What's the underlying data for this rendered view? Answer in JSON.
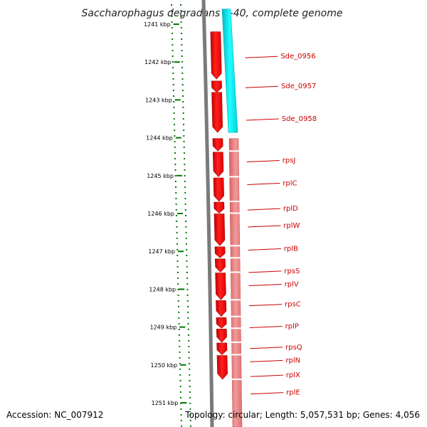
{
  "title": "Saccharophagus degradans 2-40, complete genome",
  "accession": "Accession: NC_007912",
  "topology": "Topology: circular; Length: 5,057,531 bp; Genes: 4,056",
  "ruler": {
    "unit": "kbp",
    "ticks": [
      "1241 kbp",
      "1242 kbp",
      "1243 kbp",
      "1244 kbp",
      "1245 kbp",
      "1246 kbp",
      "1247 kbp",
      "1248 kbp",
      "1249 kbp",
      "1250 kbp",
      "1251 kbp"
    ]
  },
  "colors": {
    "gene_arrow": "#ff0000",
    "operon_light": "#e77c7c",
    "highlight_cyan": "#00f0f0",
    "backbone": "#777777",
    "tick_green": "#006600",
    "label_red": "#cc0000"
  },
  "genes": [
    {
      "name": "Sde_0956",
      "start": 1241.2,
      "end": 1242.45
    },
    {
      "name": "Sde_0957",
      "start": 1242.5,
      "end": 1242.8
    },
    {
      "name": "Sde_0958",
      "start": 1242.8,
      "end": 1243.86
    },
    {
      "name": "rpsJ",
      "start": 1244.02,
      "end": 1244.35
    },
    {
      "name": "rplC",
      "start": 1244.38,
      "end": 1245.03
    },
    {
      "name": "rplD",
      "start": 1245.06,
      "end": 1245.68
    },
    {
      "name": "rplW",
      "start": 1245.7,
      "end": 1245.99
    },
    {
      "name": "rplB",
      "start": 1246.01,
      "end": 1246.85
    },
    {
      "name": "rpsS",
      "start": 1246.88,
      "end": 1247.17
    },
    {
      "name": "rplV",
      "start": 1247.2,
      "end": 1247.55
    },
    {
      "name": "rpsC",
      "start": 1247.57,
      "end": 1248.28
    },
    {
      "name": "rplP",
      "start": 1248.3,
      "end": 1248.72
    },
    {
      "name": "rpsQ",
      "start": 1248.75,
      "end": 1249.03
    },
    {
      "name": "rplN",
      "start": 1249.05,
      "end": 1249.4
    },
    {
      "name": "rplX",
      "start": 1249.42,
      "end": 1249.73
    },
    {
      "name": "rplE",
      "start": 1249.75,
      "end": 1250.38
    }
  ],
  "labels": [
    {
      "name": "Sde_0956",
      "kbp": 1241.85
    },
    {
      "name": "Sde_0957",
      "kbp": 1242.64
    },
    {
      "name": "Sde_0958",
      "kbp": 1243.5
    },
    {
      "name": "rpsJ",
      "kbp": 1244.6
    },
    {
      "name": "rplC",
      "kbp": 1245.2
    },
    {
      "name": "rplD",
      "kbp": 1245.87
    },
    {
      "name": "rplW",
      "kbp": 1246.32
    },
    {
      "name": "rplB",
      "kbp": 1246.93
    },
    {
      "name": "rpsS",
      "kbp": 1247.52
    },
    {
      "name": "rplV",
      "kbp": 1247.87
    },
    {
      "name": "rpsC",
      "kbp": 1248.4
    },
    {
      "name": "rplP",
      "kbp": 1248.98
    },
    {
      "name": "rpsQ",
      "kbp": 1249.53
    },
    {
      "name": "rplN",
      "kbp": 1249.88
    },
    {
      "name": "rplX",
      "kbp": 1250.27
    },
    {
      "name": "rplE",
      "kbp": 1250.73
    }
  ],
  "highlight": {
    "start": 1240.6,
    "end": 1243.86
  },
  "operon": {
    "start": 1244.02,
    "end": 1251.6
  }
}
